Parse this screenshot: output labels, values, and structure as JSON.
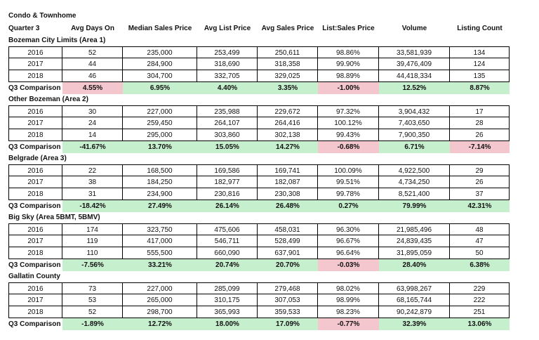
{
  "title": "Condo & Townhome",
  "headers": [
    "Quarter 3",
    "Avg Days On",
    "Median Sales Price",
    "Avg List Price",
    "Avg Sales Price",
    "List:Sales Price",
    "Volume",
    "Listing Count"
  ],
  "sections": [
    {
      "name": "Bozeman City Limits (Area 1)",
      "rows": [
        [
          "2016",
          "52",
          "235,000",
          "253,499",
          "250,611",
          "98.86%",
          "33,581,939",
          "134"
        ],
        [
          "2017",
          "44",
          "284,900",
          "318,690",
          "318,358",
          "99.90%",
          "39,476,409",
          "124"
        ],
        [
          "2018",
          "46",
          "304,700",
          "332,705",
          "329,025",
          "98.89%",
          "44,418,334",
          "135"
        ]
      ],
      "comparison": {
        "label": "Q3 Comparison",
        "values": [
          "4.55%",
          "6.95%",
          "4.40%",
          "3.35%",
          "-1.00%",
          "12.52%",
          "8.87%"
        ],
        "colors": [
          "neg",
          "pos",
          "pos",
          "pos",
          "neg",
          "pos",
          "pos"
        ]
      }
    },
    {
      "name": "Other Bozeman (Area 2)",
      "rows": [
        [
          "2016",
          "30",
          "227,000",
          "235,988",
          "229,672",
          "97.32%",
          "3,904,432",
          "17"
        ],
        [
          "2017",
          "24",
          "259,450",
          "264,107",
          "264,416",
          "100.12%",
          "7,403,650",
          "28"
        ],
        [
          "2018",
          "14",
          "295,000",
          "303,860",
          "302,138",
          "99.43%",
          "7,900,350",
          "26"
        ]
      ],
      "comparison": {
        "label": "Q3 Comparison",
        "values": [
          "-41.67%",
          "13.70%",
          "15.05%",
          "14.27%",
          "-0.68%",
          "6.71%",
          "-7.14%"
        ],
        "colors": [
          "pos",
          "pos",
          "pos",
          "pos",
          "neg",
          "pos",
          "neg"
        ]
      }
    },
    {
      "name": "Belgrade (Area 3)",
      "rows": [
        [
          "2016",
          "22",
          "168,500",
          "169,586",
          "169,741",
          "100.09%",
          "4,922,500",
          "29"
        ],
        [
          "2017",
          "38",
          "184,250",
          "182,977",
          "182,087",
          "99.51%",
          "4,734,250",
          "26"
        ],
        [
          "2018",
          "31",
          "234,900",
          "230,816",
          "230,308",
          "99.78%",
          "8,521,400",
          "37"
        ]
      ],
      "comparison": {
        "label": "Q3 Comparison",
        "values": [
          "-18.42%",
          "27.49%",
          "26.14%",
          "26.48%",
          "0.27%",
          "79.99%",
          "42.31%"
        ],
        "colors": [
          "pos",
          "pos",
          "pos",
          "pos",
          "pos",
          "pos",
          "pos"
        ]
      }
    },
    {
      "name": "Big Sky (Area 5BMT, 5BMV)",
      "rows": [
        [
          "2016",
          "174",
          "323,750",
          "475,606",
          "458,031",
          "96.30%",
          "21,985,496",
          "48"
        ],
        [
          "2017",
          "119",
          "417,000",
          "546,711",
          "528,499",
          "96.67%",
          "24,839,435",
          "47"
        ],
        [
          "2018",
          "110",
          "555,500",
          "660,090",
          "637,901",
          "96.64%",
          "31,895,059",
          "50"
        ]
      ],
      "comparison": {
        "label": "Q3 Comparison",
        "values": [
          "-7.56%",
          "33.21%",
          "20.74%",
          "20.70%",
          "-0.03%",
          "28.40%",
          "6.38%"
        ],
        "colors": [
          "pos",
          "pos",
          "pos",
          "pos",
          "neg",
          "pos",
          "pos"
        ]
      }
    },
    {
      "name": "Gallatin County",
      "rows": [
        [
          "2016",
          "73",
          "227,000",
          "285,099",
          "279,468",
          "98.02%",
          "63,998,267",
          "229"
        ],
        [
          "2017",
          "53",
          "265,000",
          "310,175",
          "307,053",
          "98.99%",
          "68,165,744",
          "222"
        ],
        [
          "2018",
          "52",
          "298,700",
          "365,993",
          "359,533",
          "98.23%",
          "90,242,879",
          "251"
        ]
      ],
      "comparison": {
        "label": "Q3 Comparison",
        "values": [
          "-1.89%",
          "12.72%",
          "18.00%",
          "17.09%",
          "-0.77%",
          "32.39%",
          "13.06%"
        ],
        "colors": [
          "pos",
          "pos",
          "pos",
          "pos",
          "neg",
          "pos",
          "pos"
        ]
      }
    }
  ]
}
